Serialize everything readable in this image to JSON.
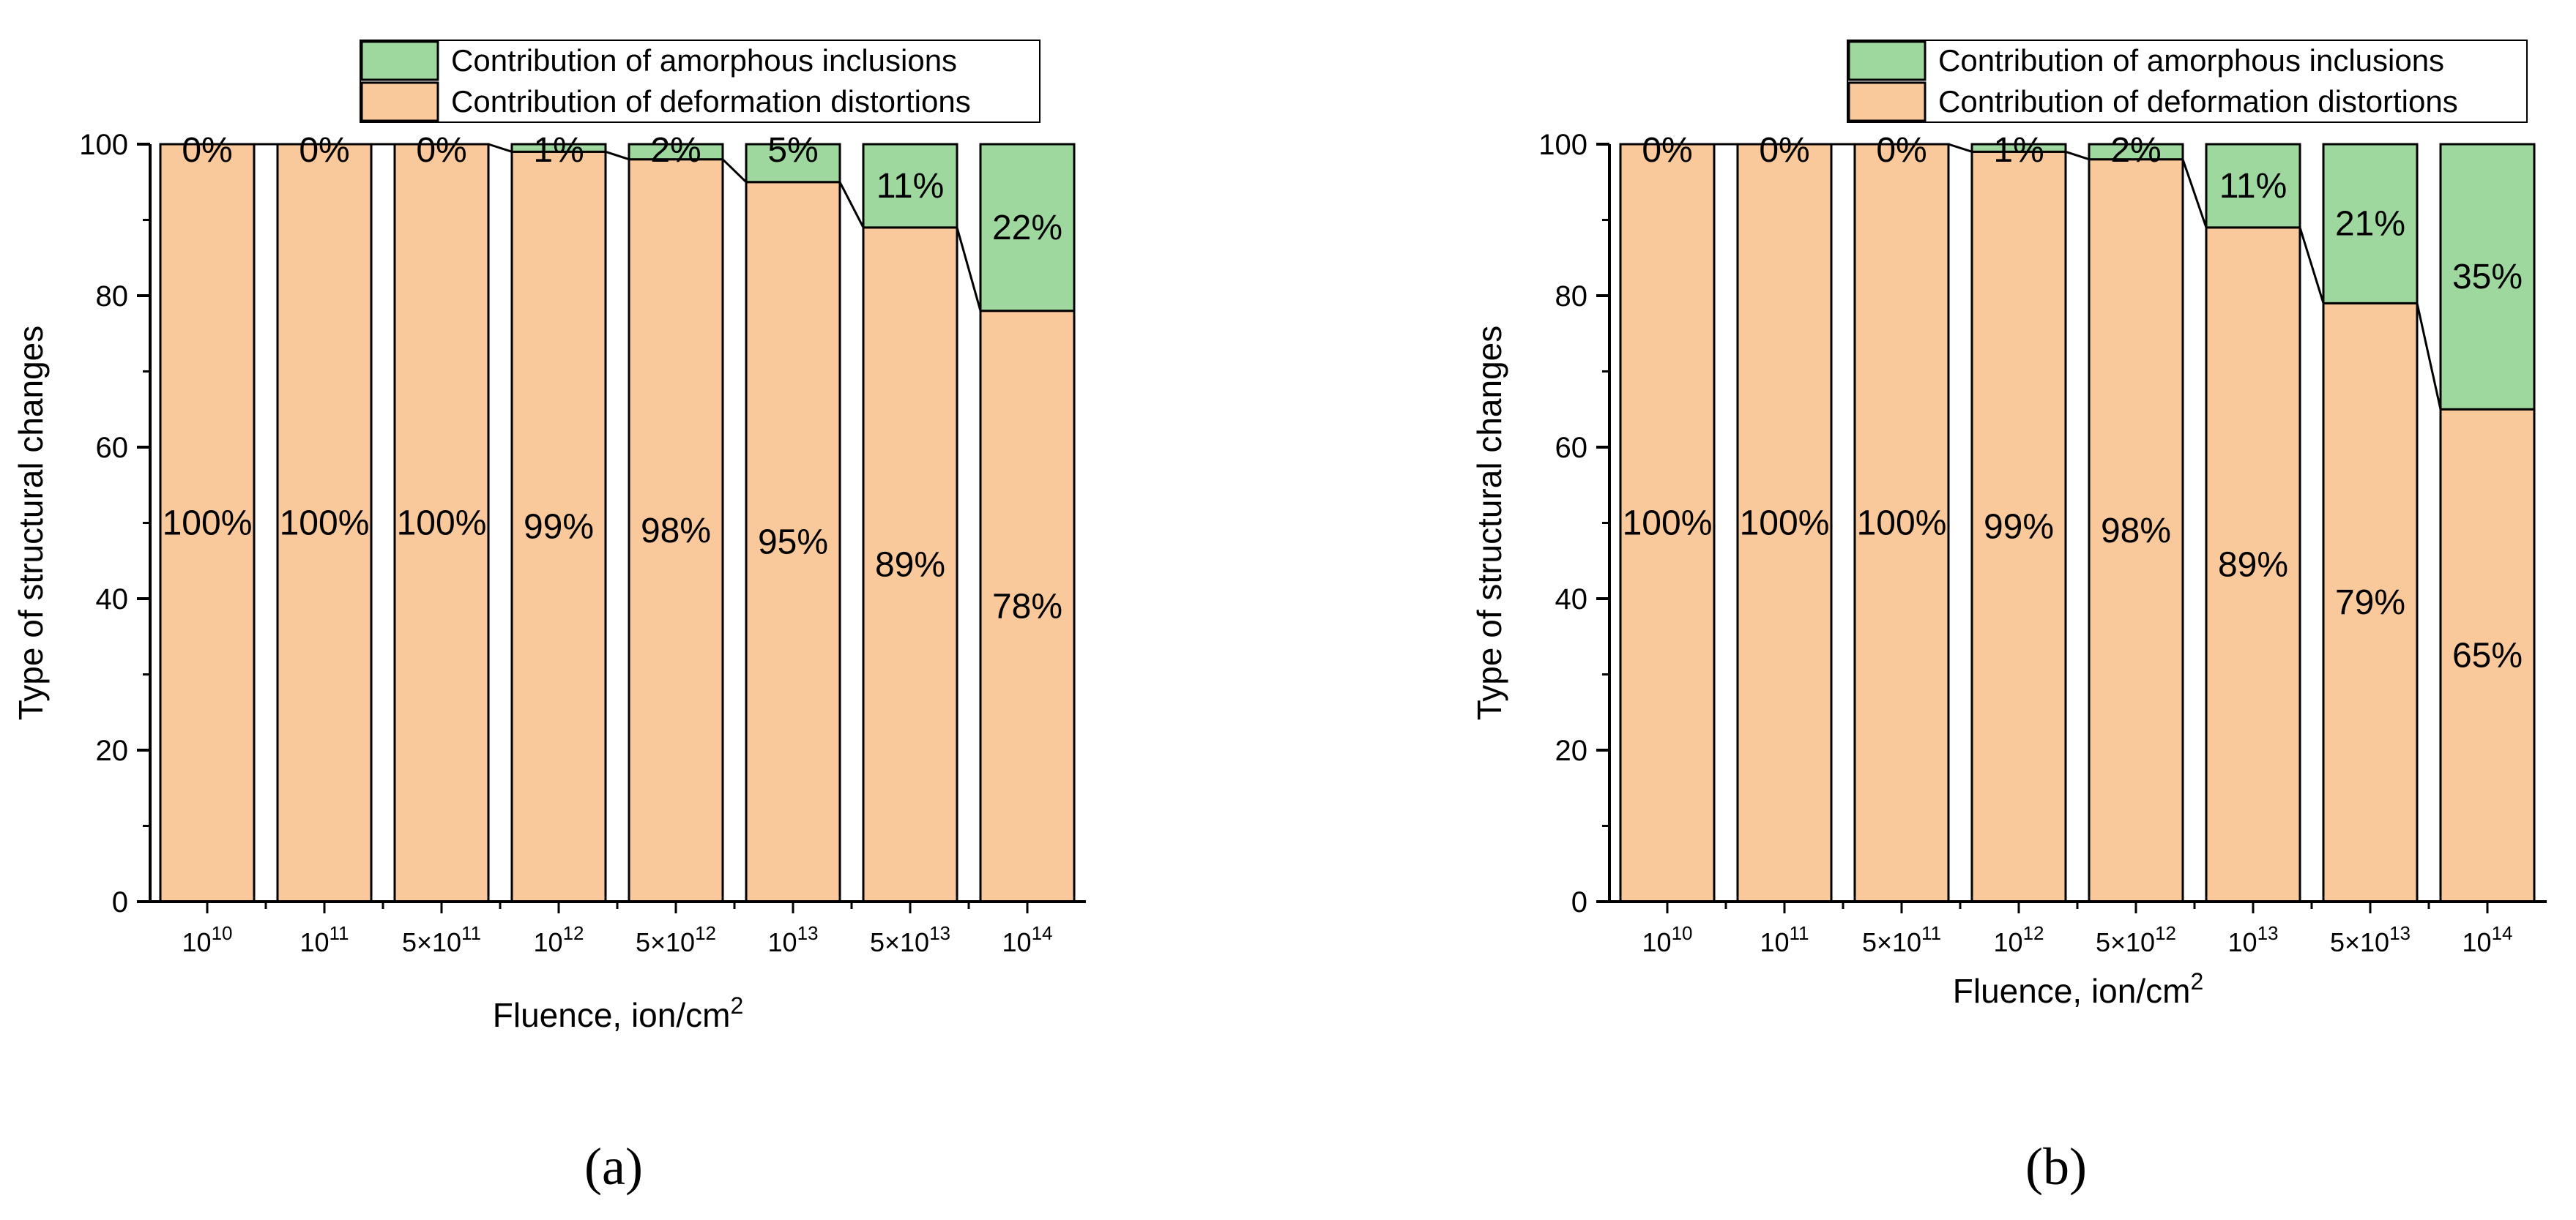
{
  "chart_data": [
    {
      "type": "bar",
      "stacked": true,
      "caption": "(a)",
      "xlabel": "Fluence, ion/cm",
      "xlabel_sup": "2",
      "ylabel": "Type of structural changes",
      "ylim": [
        0,
        100
      ],
      "yticks": [
        "0",
        "20",
        "40",
        "60",
        "80",
        "100"
      ],
      "categories": [
        {
          "base": "10",
          "exp": "10"
        },
        {
          "base": "10",
          "exp": "11"
        },
        {
          "base": "5×10",
          "exp": "11"
        },
        {
          "base": "10",
          "exp": "12"
        },
        {
          "base": "5×10",
          "exp": "12"
        },
        {
          "base": "10",
          "exp": "13"
        },
        {
          "base": "5×10",
          "exp": "13"
        },
        {
          "base": "10",
          "exp": "14"
        }
      ],
      "series": [
        {
          "name": "Contribution of deformation distortions",
          "values": [
            100,
            100,
            100,
            99,
            98,
            95,
            89,
            78
          ],
          "labels": [
            "100%",
            "100%",
            "100%",
            "99%",
            "98%",
            "95%",
            "89%",
            "78%"
          ]
        },
        {
          "name": "Contribution of amorphous inclusions",
          "values": [
            0,
            0,
            0,
            1,
            2,
            5,
            11,
            22
          ],
          "labels": [
            "0%",
            "0%",
            "0%",
            "1%",
            "2%",
            "5%",
            "11%",
            "22%"
          ]
        }
      ],
      "legend_position": "top"
    },
    {
      "type": "bar",
      "stacked": true,
      "caption": "(b)",
      "xlabel": "Fluence, ion/cm",
      "xlabel_sup": "2",
      "ylabel": "Type of structural changes",
      "ylim": [
        0,
        100
      ],
      "yticks": [
        "0",
        "20",
        "40",
        "60",
        "80",
        "100"
      ],
      "categories": [
        {
          "base": "10",
          "exp": "10"
        },
        {
          "base": "10",
          "exp": "11"
        },
        {
          "base": "5×10",
          "exp": "11"
        },
        {
          "base": "10",
          "exp": "12"
        },
        {
          "base": "5×10",
          "exp": "12"
        },
        {
          "base": "10",
          "exp": "13"
        },
        {
          "base": "5×10",
          "exp": "13"
        },
        {
          "base": "10",
          "exp": "14"
        }
      ],
      "series": [
        {
          "name": "Contribution of deformation distortions",
          "values": [
            100,
            100,
            100,
            99,
            98,
            89,
            79,
            65
          ],
          "labels": [
            "100%",
            "100%",
            "100%",
            "99%",
            "98%",
            "89%",
            "79%",
            "65%"
          ]
        },
        {
          "name": "Contribution of amorphous inclusions",
          "values": [
            0,
            0,
            0,
            1,
            2,
            11,
            21,
            35
          ],
          "labels": [
            "0%",
            "0%",
            "0%",
            "1%",
            "2%",
            "11%",
            "21%",
            "35%"
          ]
        }
      ],
      "legend_position": "top-right"
    }
  ],
  "colors": {
    "deformation": "#f9c89b",
    "amorphous": "#9ed89f",
    "outline": "#000000"
  }
}
